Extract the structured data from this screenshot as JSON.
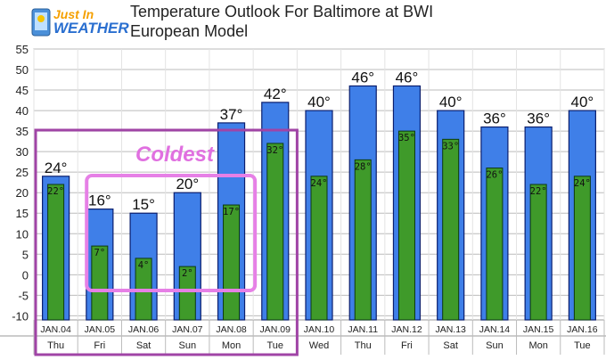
{
  "logo": {
    "line1": "Just In",
    "line2": "WEATHER"
  },
  "header": {
    "title": "Temperature Outlook For Baltimore at BWI",
    "subtitle": "European Model"
  },
  "annotation": {
    "label": "Coldest"
  },
  "colors": {
    "high_bar": "#3f7fe8",
    "low_bar": "#3f9a2a",
    "highlight_box": "#a044a6",
    "coldest_box": "#e680e6",
    "coldest_text": "#e070e0"
  },
  "chart_data": {
    "type": "bar",
    "title": "Temperature Outlook For Baltimore at BWI",
    "subtitle": "European Model",
    "ylim": [
      -11,
      55
    ],
    "yticks": [
      -10,
      -5,
      0,
      5,
      10,
      15,
      20,
      25,
      30,
      35,
      40,
      45,
      50,
      55
    ],
    "grid": true,
    "categories": [
      "JAN.04",
      "JAN.05",
      "JAN.06",
      "JAN.07",
      "JAN.08",
      "JAN.09",
      "JAN.10",
      "JAN.11",
      "JAN.12",
      "JAN.13",
      "JAN.14",
      "JAN.15",
      "JAN.16"
    ],
    "days": [
      "Thu",
      "Fri",
      "Sat",
      "Sun",
      "Mon",
      "Tue",
      "Wed",
      "Thu",
      "Fri",
      "Sat",
      "Sun",
      "Mon",
      "Tue"
    ],
    "series": [
      {
        "values": [
          24,
          16,
          15,
          20,
          37,
          42,
          40,
          46,
          46,
          40,
          36,
          36,
          40
        ],
        "labels": [
          "24°",
          "16°",
          "15°",
          "20°",
          "37°",
          "42°",
          "40°",
          "46°",
          "46°",
          "40°",
          "36°",
          "36°",
          "40°"
        ]
      },
      {
        "values": [
          22,
          7,
          4,
          2,
          17,
          32,
          24,
          28,
          35,
          33,
          26,
          22,
          24
        ],
        "labels": [
          "22°",
          "7°",
          "4°",
          "2°",
          "17°",
          "32°",
          "24°",
          "28°",
          "35°",
          "33°",
          "26°",
          "22°",
          "24°"
        ]
      }
    ],
    "annotations": [
      {
        "text": "Coldest",
        "range": [
          "JAN.05",
          "JAN.08"
        ]
      },
      {
        "range": [
          "JAN.04",
          "JAN.09"
        ]
      }
    ]
  }
}
